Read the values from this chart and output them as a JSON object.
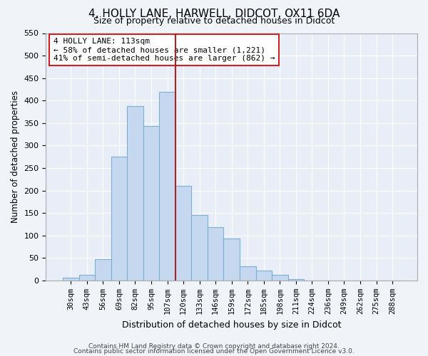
{
  "title": "4, HOLLY LANE, HARWELL, DIDCOT, OX11 6DA",
  "subtitle": "Size of property relative to detached houses in Didcot",
  "xlabel": "Distribution of detached houses by size in Didcot",
  "ylabel": "Number of detached properties",
  "categories": [
    "30sqm",
    "43sqm",
    "56sqm",
    "69sqm",
    "82sqm",
    "95sqm",
    "107sqm",
    "120sqm",
    "133sqm",
    "146sqm",
    "159sqm",
    "172sqm",
    "185sqm",
    "198sqm",
    "211sqm",
    "224sqm",
    "236sqm",
    "249sqm",
    "262sqm",
    "275sqm",
    "288sqm"
  ],
  "values": [
    7,
    12,
    48,
    275,
    387,
    344,
    420,
    210,
    145,
    118,
    93,
    32,
    22,
    12,
    3,
    0,
    0,
    0,
    0,
    0,
    0
  ],
  "bar_color": "#c5d8f0",
  "bar_edge_color": "#7bafd4",
  "vline_color": "#aa2222",
  "vline_x_index": 7,
  "annotation_text": "4 HOLLY LANE: 113sqm\n← 58% of detached houses are smaller (1,221)\n41% of semi-detached houses are larger (862) →",
  "annotation_box_color": "#ffffff",
  "annotation_box_edge_color": "#cc2222",
  "ylim": [
    0,
    550
  ],
  "yticks": [
    0,
    50,
    100,
    150,
    200,
    250,
    300,
    350,
    400,
    450,
    500,
    550
  ],
  "footer_line1": "Contains HM Land Registry data © Crown copyright and database right 2024.",
  "footer_line2": "Contains public sector information licensed under the Open Government Licence v3.0.",
  "bg_color": "#f0f4f9",
  "plot_bg_color": "#e8eef8",
  "grid_color": "#ffffff"
}
